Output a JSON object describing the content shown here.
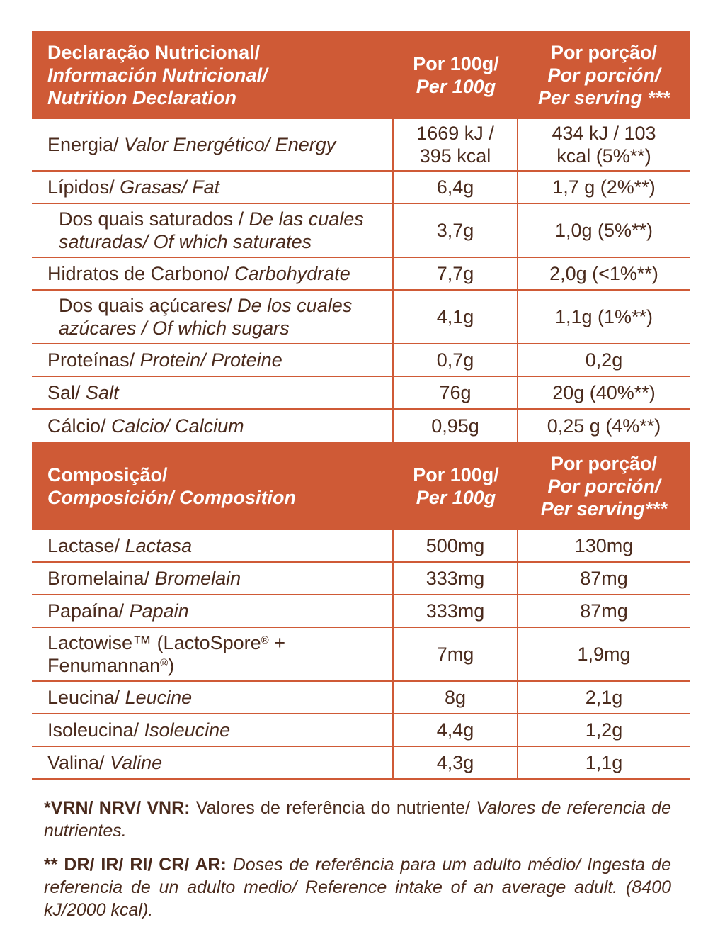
{
  "colors": {
    "accent": "#cf5a36",
    "text": "#4a2a1c",
    "header_text": "#ffffff"
  },
  "nutrition": {
    "header": {
      "col1_l1": "Declaração Nutricional/",
      "col1_l2": "Información Nutricional/",
      "col1_l3": "Nutrition Declaration",
      "col2_l1": "Por 100g/",
      "col2_l2": "Per 100g",
      "col3_l1": "Por porção/",
      "col3_l2": "Por porción/",
      "col3_l3": "Per serving ***"
    },
    "rows": [
      {
        "pt": "Energia/",
        "es_en": "Valor Energético/ Energy",
        "per100_l1": "1669 kJ /",
        "per100_l2": "395 kcal",
        "serving_l1": "434 kJ / 103",
        "serving_l2": "kcal (5%**)"
      },
      {
        "pt": "Lípidos/",
        "es_en": "Grasas/ Fat",
        "per100": "6,4g",
        "serving": "1,7 g (2%**)"
      },
      {
        "pt": "Dos quais saturados /",
        "es_en_l1": "De las cuales",
        "es_en_l2": "saturadas/ Of which saturates",
        "per100": "3,7g",
        "serving": "1,0g (5%**)"
      },
      {
        "pt": "Hidratos de Carbono/",
        "es_en": "Carbohydrate",
        "per100": "7,7g",
        "serving": "2,0g (<1%**)"
      },
      {
        "pt": "Dos quais açúcares/",
        "es_en_l1": "De los cuales",
        "es_en_l2": "azúcares / Of which sugars",
        "per100": "4,1g",
        "serving": "1,1g (1%**)"
      },
      {
        "pt": "Proteínas/",
        "es_en": "Protein/ Proteine",
        "per100": "0,7g",
        "serving": "0,2g"
      },
      {
        "pt": "Sal/",
        "es_en": "Salt",
        "per100": "76g",
        "serving": "20g (40%**)"
      },
      {
        "pt": "Cálcio/",
        "es_en": "Calcio/ Calcium",
        "per100": "0,95g",
        "serving": "0,25 g (4%**)"
      }
    ]
  },
  "composition": {
    "header": {
      "col1_l1": "Composição/",
      "col1_l2": "Composición/ Composition",
      "col2_l1": "Por 100g/",
      "col2_l2": "Per 100g",
      "col3_l1": "Por porção/",
      "col3_l2": "Por porción/",
      "col3_l3": "Per serving***"
    },
    "rows": [
      {
        "pt": "Lactase/",
        "es_en": "Lactasa",
        "per100": "500mg",
        "serving": "130mg"
      },
      {
        "pt": "Bromelaina/",
        "es_en": "Bromelain",
        "per100": "333mg",
        "serving": "87mg"
      },
      {
        "pt": "Papaína/",
        "es_en": "Papain",
        "per100": "333mg",
        "serving": "87mg"
      },
      {
        "l1a": "Lactowise™ (LactoSpore",
        "reg": "®",
        "l1b": " +",
        "l2a": "Fenumannan",
        "l2b": ")",
        "per100": "7mg",
        "serving": "1,9mg"
      },
      {
        "pt": "Leucina/",
        "es_en": "Leucine",
        "per100": "8g",
        "serving": "2,1g"
      },
      {
        "pt": "Isoleucina/",
        "es_en": "Isoleucine",
        "per100": "4,4g",
        "serving": "1,2g"
      },
      {
        "pt": "Valina/",
        "es_en": "Valine",
        "per100": "4,3g",
        "serving": "1,1g"
      }
    ]
  },
  "notes": {
    "n1_bold": "*VRN/ NRV/ VNR:",
    "n1_text": " Valores de referência do nutriente/ ",
    "n1_italic": "Valores de referencia de nutrientes.",
    "n2_bold": "** DR/ IR/ RI/ CR/ AR:",
    "n2_italic": " Doses de referência para um adulto médio/ Ingesta de referencia de un adulto medio/ Reference intake of an average adult. (8400 kJ/2000 kcal)."
  }
}
